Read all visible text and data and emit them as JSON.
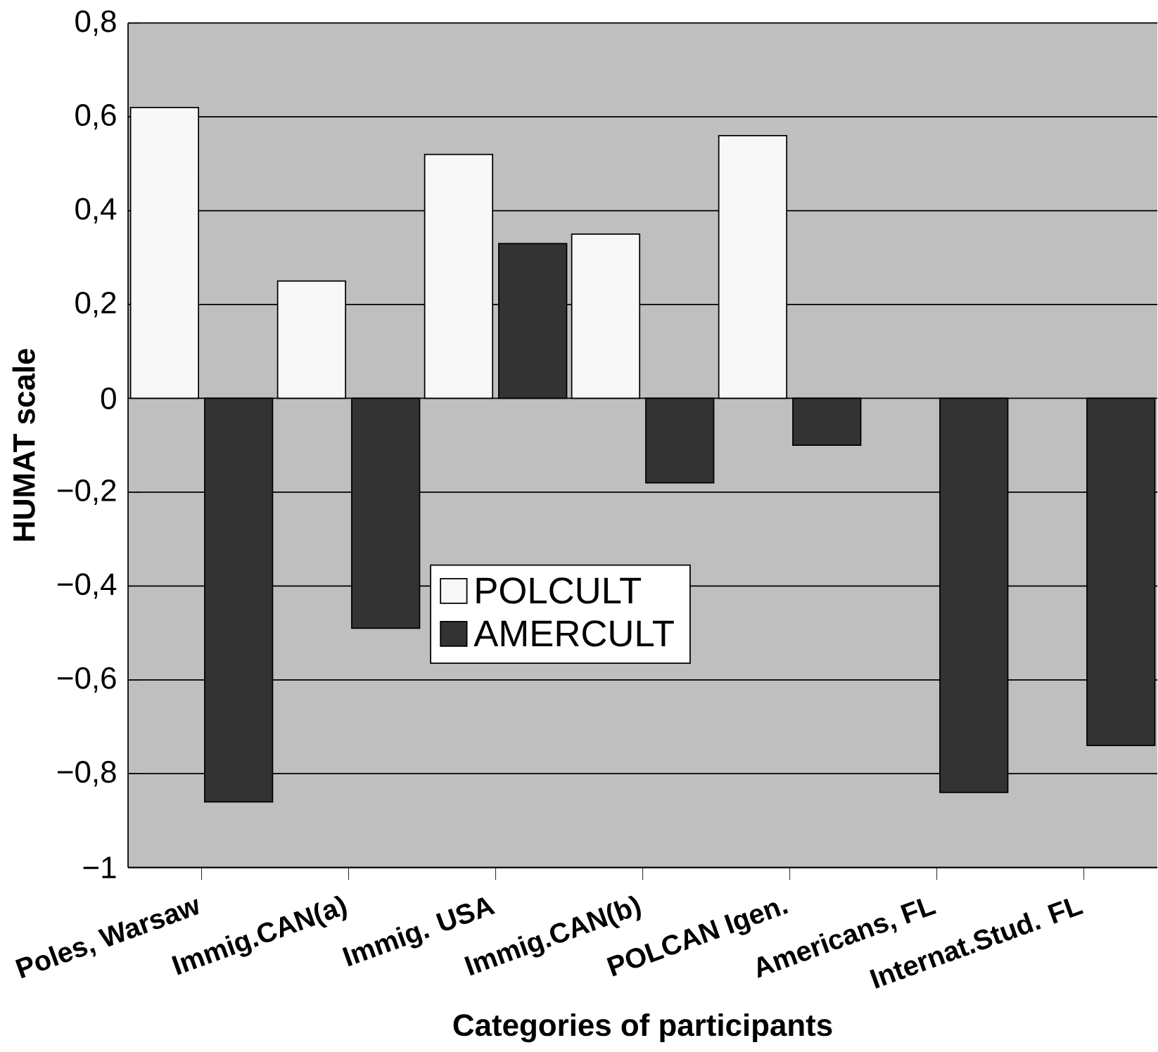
{
  "chart_data": {
    "type": "bar",
    "xlabel": "Categories of participants",
    "ylabel": "HUMAT scale",
    "categories": [
      "Poles, Warsaw",
      "Immig.CAN(a)",
      "Immig. USA",
      "Immig.CAN(b)",
      "POLCAN Igen.",
      "Americans, FL",
      "Internat.Stud. FL"
    ],
    "series": [
      {
        "name": "POLCULT",
        "color": "#f8f8f8",
        "values": [
          0.62,
          0.25,
          0.52,
          0.35,
          0.56,
          null,
          null
        ]
      },
      {
        "name": "AMERCULT",
        "color": "#333333",
        "values": [
          -0.86,
          -0.49,
          0.33,
          -0.18,
          -0.1,
          -0.84,
          -0.74
        ]
      }
    ],
    "ylim": [
      -1,
      0.8
    ],
    "yticks": [
      {
        "value": -1,
        "label": "−1"
      },
      {
        "value": -0.8,
        "label": "−0,8"
      },
      {
        "value": -0.6,
        "label": "−0,6"
      },
      {
        "value": -0.4,
        "label": "−0,4"
      },
      {
        "value": -0.2,
        "label": "−0,2"
      },
      0,
      {
        "value": 0.2,
        "label": "0,2"
      },
      {
        "value": 0.4,
        "label": "0,4"
      },
      {
        "value": 0.6,
        "label": "0,6"
      },
      {
        "value": 0.8,
        "label": "0,8"
      }
    ],
    "grid": "y",
    "legend": "center"
  }
}
